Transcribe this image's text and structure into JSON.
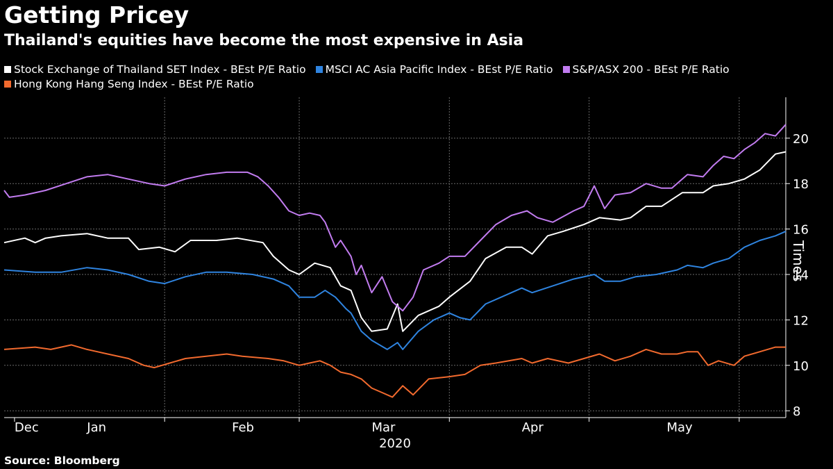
{
  "title": "Getting Pricey",
  "subtitle": "Thailand's equities have become the most expensive in Asia",
  "source": "Source: Bloomberg",
  "colors": {
    "background": "#000000",
    "grid": "#6b6b6b",
    "axis": "#ffffff"
  },
  "chart_data": {
    "type": "line",
    "ylabel": "Times",
    "ylim": [
      7.7,
      21.8
    ],
    "yticks": [
      8,
      10,
      12,
      14,
      16,
      18,
      20
    ],
    "y_axis_position": "right",
    "xlim": [
      0,
      151
    ],
    "x_month_labels": [
      {
        "label": "Dec",
        "x": 2
      },
      {
        "label": "Jan",
        "x": 16
      },
      {
        "label": "Feb",
        "x": 44
      },
      {
        "label": "Mar",
        "x": 71
      },
      {
        "label": "Apr",
        "x": 100
      },
      {
        "label": "May",
        "x": 128
      }
    ],
    "x_ticks": [
      2,
      31,
      57,
      86,
      113,
      142
    ],
    "x_gridlines": [
      31,
      57,
      86,
      113,
      142
    ],
    "year_label": "2020",
    "grid": true,
    "legend": "top",
    "series": [
      {
        "name": "Stock Exchange of Thailand SET Index - BEst P/E Ratio",
        "color": "#ffffff",
        "values": [
          [
            0,
            15.4
          ],
          [
            4,
            15.6
          ],
          [
            6,
            15.4
          ],
          [
            8,
            15.6
          ],
          [
            11,
            15.7
          ],
          [
            16,
            15.8
          ],
          [
            20,
            15.6
          ],
          [
            24,
            15.6
          ],
          [
            26,
            15.1
          ],
          [
            30,
            15.2
          ],
          [
            33,
            15.0
          ],
          [
            36,
            15.5
          ],
          [
            41,
            15.5
          ],
          [
            45,
            15.6
          ],
          [
            50,
            15.4
          ],
          [
            52,
            14.8
          ],
          [
            55,
            14.2
          ],
          [
            57,
            14.0
          ],
          [
            60,
            14.5
          ],
          [
            63,
            14.3
          ],
          [
            65,
            13.5
          ],
          [
            67,
            13.3
          ],
          [
            69,
            12.1
          ],
          [
            71,
            11.5
          ],
          [
            74,
            11.6
          ],
          [
            76,
            12.7
          ],
          [
            77,
            11.5
          ],
          [
            80,
            12.2
          ],
          [
            84,
            12.6
          ],
          [
            86,
            13.0
          ],
          [
            90,
            13.7
          ],
          [
            93,
            14.7
          ],
          [
            97,
            15.2
          ],
          [
            100,
            15.2
          ],
          [
            102,
            14.9
          ],
          [
            105,
            15.7
          ],
          [
            108,
            15.9
          ],
          [
            112,
            16.2
          ],
          [
            115,
            16.5
          ],
          [
            119,
            16.4
          ],
          [
            121,
            16.5
          ],
          [
            124,
            17.0
          ],
          [
            127,
            17.0
          ],
          [
            131,
            17.6
          ],
          [
            135,
            17.6
          ],
          [
            137,
            17.9
          ],
          [
            140,
            18.0
          ],
          [
            143,
            18.2
          ],
          [
            146,
            18.6
          ],
          [
            149,
            19.3
          ],
          [
            151,
            19.4
          ]
        ]
      },
      {
        "name": "MSCI AC Asia Pacific Index - BEst P/E Ratio",
        "color": "#2f84e0",
        "values": [
          [
            0,
            14.2
          ],
          [
            6,
            14.1
          ],
          [
            11,
            14.1
          ],
          [
            16,
            14.3
          ],
          [
            20,
            14.2
          ],
          [
            24,
            14.0
          ],
          [
            28,
            13.7
          ],
          [
            31,
            13.6
          ],
          [
            35,
            13.9
          ],
          [
            39,
            14.1
          ],
          [
            43,
            14.1
          ],
          [
            48,
            14.0
          ],
          [
            52,
            13.8
          ],
          [
            55,
            13.5
          ],
          [
            57,
            13.0
          ],
          [
            60,
            13.0
          ],
          [
            62,
            13.3
          ],
          [
            64,
            13.0
          ],
          [
            66,
            12.5
          ],
          [
            67,
            12.3
          ],
          [
            69,
            11.5
          ],
          [
            71,
            11.1
          ],
          [
            74,
            10.7
          ],
          [
            76,
            11.0
          ],
          [
            77,
            10.7
          ],
          [
            80,
            11.5
          ],
          [
            83,
            12.0
          ],
          [
            86,
            12.3
          ],
          [
            88,
            12.1
          ],
          [
            90,
            12.0
          ],
          [
            93,
            12.7
          ],
          [
            96,
            13.0
          ],
          [
            100,
            13.4
          ],
          [
            102,
            13.2
          ],
          [
            106,
            13.5
          ],
          [
            110,
            13.8
          ],
          [
            114,
            14.0
          ],
          [
            116,
            13.7
          ],
          [
            119,
            13.7
          ],
          [
            122,
            13.9
          ],
          [
            126,
            14.0
          ],
          [
            130,
            14.2
          ],
          [
            132,
            14.4
          ],
          [
            135,
            14.3
          ],
          [
            137,
            14.5
          ],
          [
            140,
            14.7
          ],
          [
            143,
            15.2
          ],
          [
            146,
            15.5
          ],
          [
            149,
            15.7
          ],
          [
            151,
            15.9
          ]
        ]
      },
      {
        "name": "S&P/ASX 200 - BEst P/E Ratio",
        "color": "#c27cf0",
        "values": [
          [
            0,
            17.7
          ],
          [
            1,
            17.4
          ],
          [
            4,
            17.5
          ],
          [
            8,
            17.7
          ],
          [
            12,
            18.0
          ],
          [
            16,
            18.3
          ],
          [
            20,
            18.4
          ],
          [
            24,
            18.2
          ],
          [
            28,
            18.0
          ],
          [
            31,
            17.9
          ],
          [
            35,
            18.2
          ],
          [
            39,
            18.4
          ],
          [
            43,
            18.5
          ],
          [
            47,
            18.5
          ],
          [
            49,
            18.3
          ],
          [
            51,
            17.9
          ],
          [
            53,
            17.4
          ],
          [
            55,
            16.8
          ],
          [
            57,
            16.6
          ],
          [
            59,
            16.7
          ],
          [
            61,
            16.6
          ],
          [
            62,
            16.3
          ],
          [
            64,
            15.2
          ],
          [
            65,
            15.5
          ],
          [
            67,
            14.8
          ],
          [
            68,
            14.0
          ],
          [
            69,
            14.4
          ],
          [
            71,
            13.2
          ],
          [
            73,
            13.9
          ],
          [
            75,
            12.8
          ],
          [
            77,
            12.4
          ],
          [
            79,
            13.0
          ],
          [
            81,
            14.2
          ],
          [
            84,
            14.5
          ],
          [
            86,
            14.8
          ],
          [
            89,
            14.8
          ],
          [
            92,
            15.5
          ],
          [
            95,
            16.2
          ],
          [
            98,
            16.6
          ],
          [
            101,
            16.8
          ],
          [
            103,
            16.5
          ],
          [
            106,
            16.3
          ],
          [
            110,
            16.8
          ],
          [
            112,
            17.0
          ],
          [
            114,
            17.9
          ],
          [
            116,
            16.9
          ],
          [
            118,
            17.5
          ],
          [
            121,
            17.6
          ],
          [
            124,
            18.0
          ],
          [
            127,
            17.8
          ],
          [
            129,
            17.8
          ],
          [
            132,
            18.4
          ],
          [
            135,
            18.3
          ],
          [
            137,
            18.8
          ],
          [
            139,
            19.2
          ],
          [
            141,
            19.1
          ],
          [
            143,
            19.5
          ],
          [
            145,
            19.8
          ],
          [
            147,
            20.2
          ],
          [
            149,
            20.1
          ],
          [
            151,
            20.6
          ]
        ]
      },
      {
        "name": "Hong Kong Hang Seng Index - BEst P/E Ratio",
        "color": "#f26a2e",
        "values": [
          [
            0,
            10.7
          ],
          [
            6,
            10.8
          ],
          [
            9,
            10.7
          ],
          [
            13,
            10.9
          ],
          [
            16,
            10.7
          ],
          [
            18,
            10.6
          ],
          [
            20,
            10.5
          ],
          [
            24,
            10.3
          ],
          [
            27,
            10.0
          ],
          [
            29,
            9.9
          ],
          [
            32,
            10.1
          ],
          [
            35,
            10.3
          ],
          [
            39,
            10.4
          ],
          [
            43,
            10.5
          ],
          [
            46,
            10.4
          ],
          [
            51,
            10.3
          ],
          [
            54,
            10.2
          ],
          [
            57,
            10.0
          ],
          [
            59,
            10.1
          ],
          [
            61,
            10.2
          ],
          [
            63,
            10.0
          ],
          [
            65,
            9.7
          ],
          [
            67,
            9.6
          ],
          [
            69,
            9.4
          ],
          [
            71,
            9.0
          ],
          [
            73,
            8.8
          ],
          [
            75,
            8.6
          ],
          [
            77,
            9.1
          ],
          [
            79,
            8.7
          ],
          [
            82,
            9.4
          ],
          [
            86,
            9.5
          ],
          [
            89,
            9.6
          ],
          [
            92,
            10.0
          ],
          [
            95,
            10.1
          ],
          [
            100,
            10.3
          ],
          [
            102,
            10.1
          ],
          [
            105,
            10.3
          ],
          [
            109,
            10.1
          ],
          [
            112,
            10.3
          ],
          [
            115,
            10.5
          ],
          [
            118,
            10.2
          ],
          [
            121,
            10.4
          ],
          [
            124,
            10.7
          ],
          [
            127,
            10.5
          ],
          [
            130,
            10.5
          ],
          [
            132,
            10.6
          ],
          [
            134,
            10.6
          ],
          [
            136,
            10.0
          ],
          [
            138,
            10.2
          ],
          [
            141,
            10.0
          ],
          [
            143,
            10.4
          ],
          [
            146,
            10.6
          ],
          [
            149,
            10.8
          ],
          [
            151,
            10.8
          ]
        ]
      }
    ]
  }
}
